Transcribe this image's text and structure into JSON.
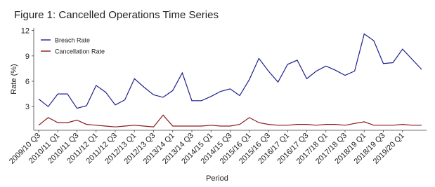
{
  "chart_data": {
    "type": "line",
    "title": "Figure 1: Cancelled Operations Time Series",
    "x_label": "Period",
    "y_label": "Rate (%)",
    "categories": [
      "2009/10 Q3",
      null,
      "2010/11 Q1",
      null,
      "2010/11 Q3",
      null,
      "2011/12 Q1",
      null,
      "2011/12 Q3",
      null,
      "2012/13 Q1",
      null,
      "2012/13 Q3",
      null,
      "2013/14 Q1",
      null,
      "2013/14 Q3",
      null,
      "2014/15 Q1",
      null,
      "2014/15 Q3",
      null,
      "2015/16 Q1",
      null,
      "2015/16 Q3",
      null,
      "2016/17 Q1",
      null,
      "2016/17 Q3",
      null,
      "2017/18 Q1",
      null,
      "2017/18 Q3",
      null,
      "2018/19 Q1",
      null,
      "2018/19 Q3",
      null,
      "2019/20 Q1",
      null,
      null
    ],
    "series": [
      {
        "name": "Breach Rate",
        "color": "#1f1f8f",
        "values": [
          3.9,
          3.0,
          4.5,
          4.5,
          2.8,
          3.1,
          5.5,
          4.7,
          3.2,
          3.8,
          6.3,
          5.3,
          4.4,
          4.1,
          4.9,
          7.0,
          3.7,
          3.7,
          4.2,
          4.8,
          5.1,
          4.3,
          6.2,
          8.7,
          7.2,
          5.9,
          8.0,
          8.5,
          6.3,
          7.2,
          7.8,
          7.3,
          6.7,
          7.2,
          11.6,
          10.8,
          8.1,
          8.2,
          9.8,
          8.6,
          7.4
        ]
      },
      {
        "name": "Cancellation Rate",
        "color": "#8b1a1a",
        "values": [
          0.8,
          1.7,
          1.1,
          1.1,
          1.4,
          0.9,
          0.8,
          0.7,
          0.6,
          0.7,
          0.8,
          0.7,
          0.6,
          2.0,
          0.7,
          0.7,
          0.7,
          0.7,
          0.8,
          0.7,
          0.7,
          0.9,
          1.7,
          1.1,
          0.9,
          0.8,
          0.8,
          0.9,
          0.9,
          0.8,
          0.9,
          0.9,
          0.8,
          1.0,
          1.2,
          0.8,
          0.8,
          0.8,
          0.9,
          0.8,
          0.8
        ]
      }
    ],
    "ylim": [
      0.2,
      12.3
    ],
    "yticks": [
      3,
      6,
      9,
      12
    ],
    "grid": false,
    "legend": "top-left"
  }
}
